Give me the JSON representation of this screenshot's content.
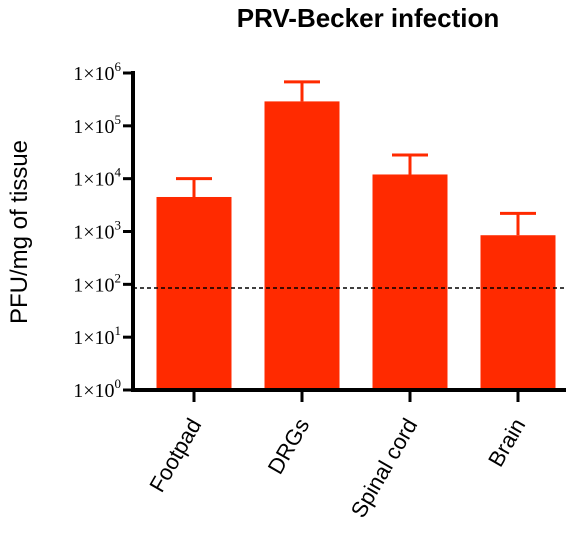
{
  "chart_data": {
    "type": "bar",
    "title": "PRV-Becker infection",
    "ylabel": "PFU/mg of tissue",
    "xlabel": "",
    "yscale": "log",
    "ylim": [
      1,
      1000000
    ],
    "y_ticks": [
      {
        "value": 1,
        "mantissa": "1×10",
        "exponent": "0"
      },
      {
        "value": 10,
        "mantissa": "1×10",
        "exponent": "1"
      },
      {
        "value": 100,
        "mantissa": "1×10",
        "exponent": "2"
      },
      {
        "value": 1000,
        "mantissa": "1×10",
        "exponent": "3"
      },
      {
        "value": 10000,
        "mantissa": "1×10",
        "exponent": "4"
      },
      {
        "value": 100000,
        "mantissa": "1×10",
        "exponent": "5"
      },
      {
        "value": 1000000,
        "mantissa": "1×10",
        "exponent": "6"
      }
    ],
    "categories": [
      "Footpad",
      "DRGs",
      "Spinal cord",
      "Brain"
    ],
    "values": [
      4500,
      290000,
      12000,
      850
    ],
    "error_upper": [
      10000,
      680000,
      28000,
      2200
    ],
    "detection_limit": 85,
    "colors": {
      "bar": "#ff2a00",
      "axis": "#000000",
      "limit_line": "#000000"
    }
  }
}
